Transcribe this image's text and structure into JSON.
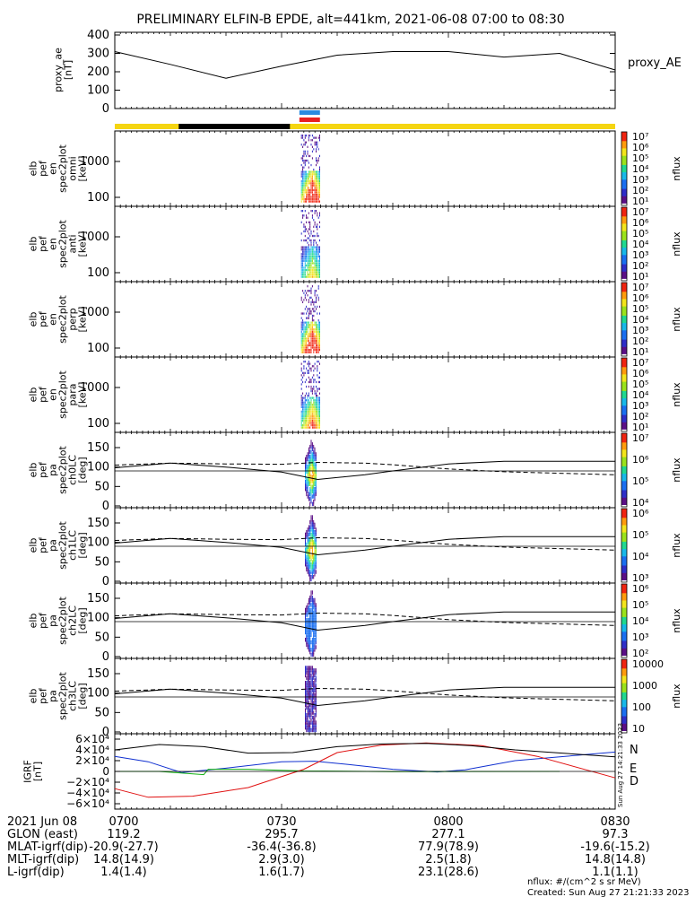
{
  "title": "PRELIMINARY ELFIN-B EPDE, alt=441km, 2021-06-08 07:00 to 08:30",
  "colors": {
    "sunlight_bar": "#f5d511",
    "eclipse_bar": "#000000",
    "science_blue": "#2a8ae0",
    "science_red": "#e82020",
    "grf_n": "#1030d0",
    "grf_e": "#10b010",
    "grf_d": "#e01010"
  },
  "panels": {
    "ae": {
      "ylabel_lines": [
        "proxy_ae",
        "[nT]"
      ],
      "yticks": [
        "400",
        "300",
        "200",
        "100",
        "0"
      ],
      "legend": "proxy_AE"
    },
    "spec": [
      {
        "ylabel_lines": [
          "elb",
          "pef",
          "en",
          "spec2plot",
          "omni",
          "[keV]"
        ],
        "yticks": [
          "1000",
          "100"
        ]
      },
      {
        "ylabel_lines": [
          "elb",
          "pef",
          "en",
          "spec2plot",
          "anti",
          "[keV]"
        ],
        "yticks": [
          "1000",
          "100"
        ]
      },
      {
        "ylabel_lines": [
          "elb",
          "pef",
          "en",
          "spec2plot",
          "perp",
          "[keV]"
        ],
        "yticks": [
          "1000",
          "100"
        ]
      },
      {
        "ylabel_lines": [
          "elb",
          "pef",
          "en",
          "spec2plot",
          "para",
          "[keV]"
        ],
        "yticks": [
          "1000",
          "100"
        ]
      }
    ],
    "pa": [
      {
        "ylabel_lines": [
          "elb",
          "pef",
          "pa",
          "spec2plot",
          "ch0LC",
          "[deg]"
        ],
        "yticks": [
          "150",
          "100",
          "50",
          "0"
        ]
      },
      {
        "ylabel_lines": [
          "elb",
          "pef",
          "pa",
          "spec2plot",
          "ch1LC",
          "[deg]"
        ],
        "yticks": [
          "150",
          "100",
          "50",
          "0"
        ]
      },
      {
        "ylabel_lines": [
          "elb",
          "pef",
          "pa",
          "spec2plot",
          "ch2LC",
          "[deg]"
        ],
        "yticks": [
          "150",
          "100",
          "50",
          "0"
        ]
      },
      {
        "ylabel_lines": [
          "elb",
          "pef",
          "pa",
          "spec2plot",
          "ch3LC",
          "[deg]"
        ],
        "yticks": [
          "150",
          "100",
          "50",
          "0"
        ]
      }
    ],
    "grf": {
      "ylabel_lines": [
        "IGRF",
        "[nT]"
      ],
      "yticks": [
        "6×10⁴",
        "4×10⁴",
        "2×10⁴",
        "0",
        "−2×10⁴",
        "−4×10⁴",
        "−6×10⁴"
      ],
      "legend": [
        "N",
        "E",
        "D"
      ],
      "side_stamp": "Sun Aug 27 14:21:33 2023"
    }
  },
  "colorbars": [
    {
      "ticks": [
        "10⁷",
        "10⁶",
        "10⁵",
        "10⁴",
        "10³",
        "10²",
        "10¹"
      ],
      "label": "nflux"
    },
    {
      "ticks": [
        "10⁷",
        "10⁶",
        "10⁵",
        "10⁴",
        "10³",
        "10²",
        "10¹"
      ],
      "label": "nflux"
    },
    {
      "ticks": [
        "10⁷",
        "10⁶",
        "10⁵",
        "10⁴",
        "10³",
        "10²",
        "10¹"
      ],
      "label": "nflux"
    },
    {
      "ticks": [
        "10⁷",
        "10⁶",
        "10⁵",
        "10⁴",
        "10³",
        "10²",
        "10¹"
      ],
      "label": "nflux"
    },
    {
      "ticks": [
        "10⁷",
        "10⁶",
        "10⁵",
        "10⁴"
      ],
      "label": "nflux"
    },
    {
      "ticks": [
        "10⁶",
        "10⁵",
        "10⁴",
        "10³"
      ],
      "label": "nflux"
    },
    {
      "ticks": [
        "10⁶",
        "10⁵",
        "10⁴",
        "10³",
        "10²"
      ],
      "label": "nflux"
    },
    {
      "ticks": [
        "10000",
        "1000",
        "100",
        "10"
      ],
      "label": "nflux"
    }
  ],
  "xaxis": {
    "date": "2021 Jun 08",
    "ticks": [
      "0700",
      "0730",
      "0800",
      "0830"
    ],
    "rows": [
      {
        "label": "GLON (east)",
        "values": [
          "119.2",
          "295.7",
          "277.1",
          "97.3"
        ]
      },
      {
        "label": "MLAT-igrf(dip)",
        "values": [
          "-20.9(-27.7)",
          "-36.4(-36.8)",
          "77.9(78.9)",
          "-19.6(-15.2)"
        ]
      },
      {
        "label": "MLT-igrf(dip)",
        "values": [
          "14.8(14.9)",
          "2.9(3.0)",
          "2.5(1.8)",
          "14.8(14.8)"
        ]
      },
      {
        "label": "L-igrf(dip)",
        "values": [
          "1.4(1.4)",
          "1.6(1.7)",
          "23.1(28.6)",
          "1.1(1.1)"
        ]
      }
    ]
  },
  "footer": {
    "units": "nflux: #/(cm^2 s sr MeV)",
    "created": "Created: Sun Aug 27 21:21:33 2023"
  },
  "chart_data": {
    "type": "line",
    "x_range": [
      "07:00",
      "08:30"
    ],
    "x_ticks": [
      "0700",
      "0730",
      "0800",
      "0830"
    ],
    "proxy_ae": {
      "ylim": [
        0,
        400
      ],
      "t_min": [
        0,
        10,
        20,
        30,
        40,
        50,
        60,
        70,
        80,
        90
      ],
      "values": [
        310,
        240,
        165,
        230,
        290,
        310,
        310,
        280,
        300,
        210
      ]
    },
    "eclipse_interval_min": [
      11.5,
      31.5
    ],
    "science_zone_min": [
      33.2,
      36.9
    ],
    "spectra_active_interval_min": [
      33.5,
      37.0
    ],
    "spectra_energy_range_keV": [
      60,
      5000
    ],
    "pitch_angle": {
      "ylim": [
        0,
        180
      ],
      "t_min": [
        0,
        10,
        20,
        30,
        36.5,
        45,
        50,
        60,
        70,
        90
      ],
      "loss_cone_solid": [
        98,
        110,
        100,
        87,
        68,
        80,
        90,
        108,
        115,
        115
      ],
      "loss_cone_dashed": [
        105,
        110,
        108,
        107,
        112,
        110,
        106,
        95,
        88,
        80
      ],
      "horizontal_line_deg": 90
    },
    "igrf": {
      "ylim": [
        -65000,
        65000
      ],
      "series": [
        {
          "name": "N",
          "t_min": [
            0,
            6,
            12,
            20,
            30,
            36,
            42,
            50,
            58,
            63,
            72,
            90
          ],
          "values": [
            28000,
            18000,
            -2000,
            6000,
            18000,
            19000,
            13000,
            4000,
            -1000,
            3000,
            20000,
            36000
          ]
        },
        {
          "name": "E",
          "t_min": [
            0,
            8,
            16,
            16.8,
            24,
            34,
            50,
            80
          ],
          "values": [
            0,
            0,
            -6000,
            4000,
            4000,
            800,
            -400,
            0
          ]
        },
        {
          "name": "D",
          "t_min": [
            0,
            6,
            14,
            24,
            34,
            40,
            48,
            56,
            66,
            76,
            90
          ],
          "values": [
            -32000,
            -48000,
            -46000,
            -30000,
            4000,
            35000,
            49000,
            53000,
            48000,
            28000,
            -12000
          ]
        },
        {
          "name": "",
          "t_min": [
            0,
            8,
            16,
            24,
            32,
            40,
            48,
            56,
            64,
            72,
            90
          ],
          "values": [
            40000,
            50000,
            46000,
            34000,
            35000,
            46000,
            51000,
            52000,
            48000,
            40000,
            27000
          ]
        }
      ]
    }
  }
}
